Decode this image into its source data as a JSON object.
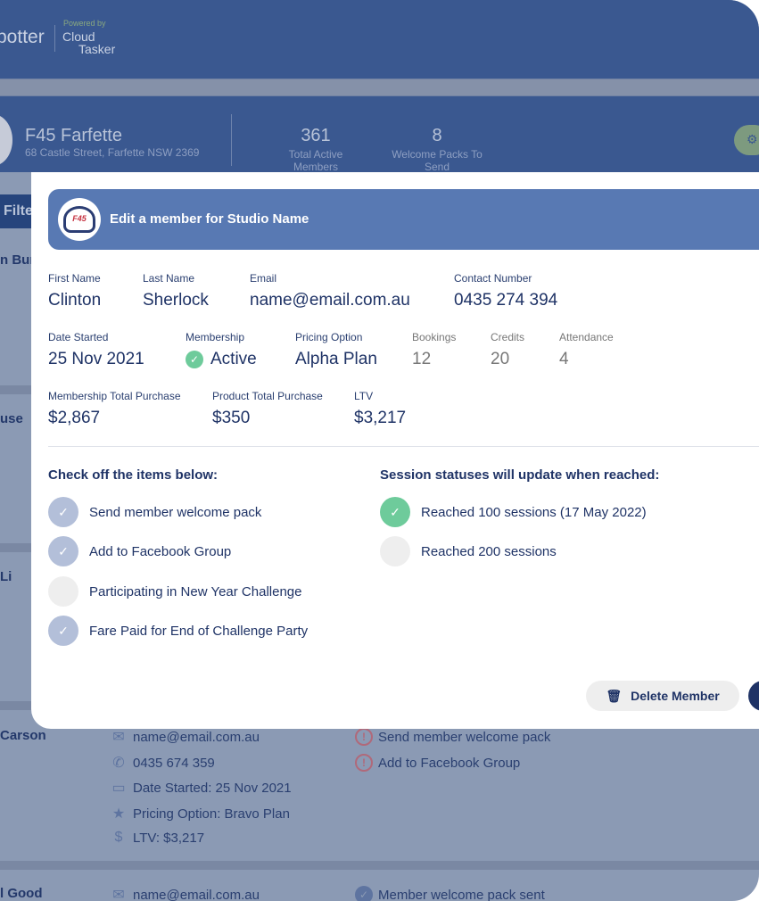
{
  "header": {
    "logo_text": "potter",
    "powered_by": "Powered by",
    "cloud": "Cloud",
    "tasker": "Tasker"
  },
  "studio": {
    "name": "F45 Farfette",
    "address": "68 Castle Street, Farfette NSW 2369",
    "stats": [
      {
        "value": "361",
        "label": "Total Active Members"
      },
      {
        "value": "8",
        "label": "Welcome Packs To Send"
      }
    ]
  },
  "filter_label": "Filte",
  "list": {
    "names": [
      "n Burg",
      "use",
      "Li",
      "Carson",
      "l Good"
    ],
    "carson": {
      "email": "name@email.com.au",
      "phone": "0435 674 359",
      "date": "Date Started: 25 Nov 2021",
      "pricing": "Pricing Option: Bravo Plan",
      "ltv": "LTV: $3,217",
      "todo": [
        "Send member welcome pack",
        "Add to Facebook Group"
      ]
    },
    "good": {
      "email": "name@email.com.au",
      "done": "Member welcome pack sent"
    }
  },
  "modal": {
    "logo_text": "F45",
    "title": "Edit a member for Studio Name",
    "fields": {
      "first_name": {
        "label": "First Name",
        "value": "Clinton"
      },
      "last_name": {
        "label": "Last Name",
        "value": "Sherlock"
      },
      "email": {
        "label": "Email",
        "value": "name@email.com.au"
      },
      "contact": {
        "label": "Contact Number",
        "value": "0435 274 394"
      },
      "date_started": {
        "label": "Date Started",
        "value": "25 Nov 2021"
      },
      "membership": {
        "label": "Membership",
        "value": "Active"
      },
      "pricing": {
        "label": "Pricing Option",
        "value": "Alpha Plan"
      },
      "bookings": {
        "label": "Bookings",
        "value": "12"
      },
      "credits": {
        "label": "Credits",
        "value": "20"
      },
      "attendance": {
        "label": "Attendance",
        "value": "4"
      },
      "membership_total": {
        "label": "Membership Total Purchase",
        "value": "$2,867"
      },
      "product_total": {
        "label": "Product Total Purchase",
        "value": "$350"
      },
      "ltv": {
        "label": "LTV",
        "value": "$3,217"
      }
    },
    "checklist_title": "Check off the items below:",
    "checklist": [
      {
        "label": "Send member welcome pack",
        "checked": true
      },
      {
        "label": "Add to Facebook Group",
        "checked": true
      },
      {
        "label": "Participating in New Year Challenge",
        "checked": false
      },
      {
        "label": "Fare Paid for End of Challenge Party",
        "checked": true
      }
    ],
    "sessions_title": "Session statuses will update when reached:",
    "sessions": [
      {
        "label": "Reached 100 sessions (17 May 2022)",
        "reached": true
      },
      {
        "label": "Reached 200 sessions",
        "reached": false
      }
    ],
    "delete_label": "Delete Member"
  }
}
